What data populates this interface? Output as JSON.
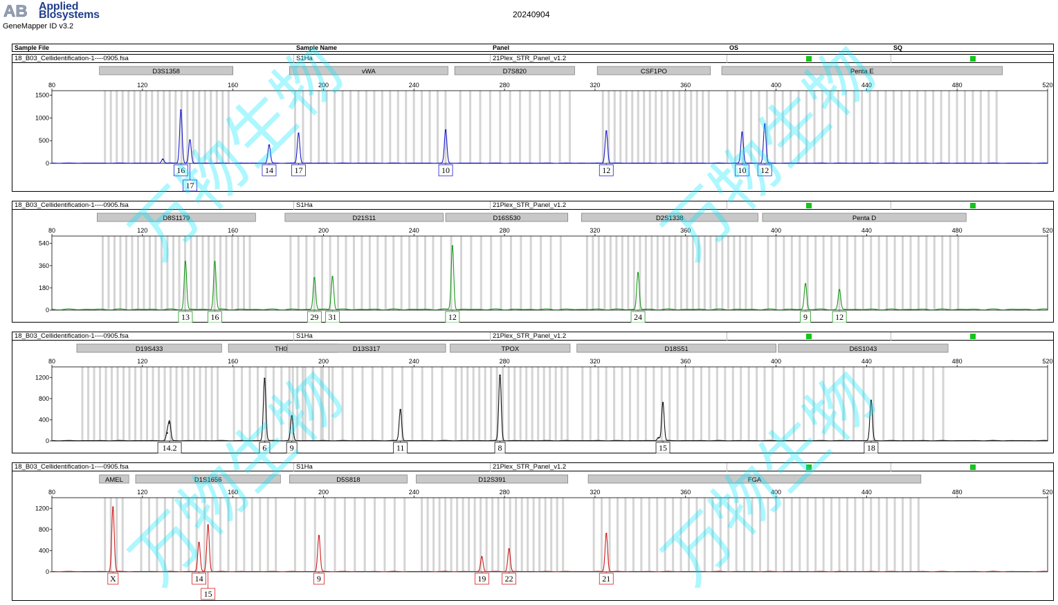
{
  "logo": {
    "mark": "AB",
    "line1": "Applied",
    "line2": "Biosystems"
  },
  "product": "GeneMapper ID v3.2",
  "report_date": "20240904",
  "watermark_text": "万物生物",
  "header": {
    "sample_file": "Sample File",
    "sample_name": "Sample Name",
    "panel": "Panel",
    "os": "OS",
    "sq": "SQ"
  },
  "colors": {
    "blue": "#1a1acb",
    "green": "#1a9a1a",
    "black": "#111111",
    "red": "#d01a1a",
    "bin": "#d4d4d4",
    "marker": "#c8c8c8",
    "flag": "#17c41c"
  },
  "chart_data": [
    {
      "type": "line",
      "dye": "blue",
      "sample_file": "18_B03_Cellidentification-1----0905.fsa",
      "sample_name": "S1Ha",
      "panel": "21Plex_STR_Panel_v1.2",
      "x_ticks": [
        80,
        120,
        160,
        200,
        240,
        280,
        320,
        360,
        400,
        440,
        480,
        520
      ],
      "y_ticks": [
        0,
        500,
        1000,
        1500
      ],
      "xlim": [
        80,
        520
      ],
      "ylim": [
        0,
        1600
      ],
      "markers": [
        {
          "name": "D3S1358",
          "start": 101,
          "end": 160
        },
        {
          "name": "vWA",
          "start": 185,
          "end": 255
        },
        {
          "name": "D7S820",
          "start": 258,
          "end": 311
        },
        {
          "name": "CSF1PO",
          "start": 321,
          "end": 371
        },
        {
          "name": "Penta E",
          "start": 376,
          "end": 500
        }
      ],
      "peaks": [
        {
          "x": 129,
          "y": 90
        },
        {
          "x": 137,
          "y": 1170
        },
        {
          "x": 141,
          "y": 510
        },
        {
          "x": 176,
          "y": 400
        },
        {
          "x": 189,
          "y": 660
        },
        {
          "x": 254,
          "y": 730
        },
        {
          "x": 325,
          "y": 710
        },
        {
          "x": 385,
          "y": 680
        },
        {
          "x": 395,
          "y": 860
        }
      ],
      "alleles": [
        {
          "label": "16",
          "x": 137,
          "row": 0
        },
        {
          "label": "17",
          "x": 141,
          "row": 1
        },
        {
          "label": "14",
          "x": 176,
          "row": 0
        },
        {
          "label": "17",
          "x": 189,
          "row": 0
        },
        {
          "label": "10",
          "x": 254,
          "row": 0
        },
        {
          "label": "12",
          "x": 325,
          "row": 0
        },
        {
          "label": "10",
          "x": 385,
          "row": 0
        },
        {
          "label": "12",
          "x": 395,
          "row": 0
        }
      ]
    },
    {
      "type": "line",
      "dye": "green",
      "sample_file": "18_B03_Cellidentification-1----0905.fsa",
      "sample_name": "S1Ha",
      "panel": "21Plex_STR_Panel_v1.2",
      "x_ticks": [
        80,
        120,
        160,
        200,
        240,
        280,
        320,
        360,
        400,
        440,
        480,
        520
      ],
      "y_ticks": [
        0,
        180,
        360,
        540
      ],
      "xlim": [
        80,
        520
      ],
      "ylim": [
        0,
        600
      ],
      "markers": [
        {
          "name": "D8S1179",
          "start": 100,
          "end": 170
        },
        {
          "name": "D21S11",
          "start": 183,
          "end": 253
        },
        {
          "name": "D16S530",
          "start": 254,
          "end": 308
        },
        {
          "name": "D2S1338",
          "start": 314,
          "end": 392
        },
        {
          "name": "Penta D",
          "start": 394,
          "end": 484
        }
      ],
      "peaks": [
        {
          "x": 139,
          "y": 390
        },
        {
          "x": 152,
          "y": 390
        },
        {
          "x": 196,
          "y": 260
        },
        {
          "x": 204,
          "y": 270
        },
        {
          "x": 257,
          "y": 520
        },
        {
          "x": 339,
          "y": 300
        },
        {
          "x": 413,
          "y": 210
        },
        {
          "x": 428,
          "y": 160
        }
      ],
      "alleles": [
        {
          "label": "13",
          "x": 139,
          "row": 0
        },
        {
          "label": "16",
          "x": 152,
          "row": 0
        },
        {
          "label": "29",
          "x": 196,
          "row": 0
        },
        {
          "label": "31",
          "x": 204,
          "row": 0
        },
        {
          "label": "12",
          "x": 257,
          "row": 0
        },
        {
          "label": "24",
          "x": 339,
          "row": 0
        },
        {
          "label": "9",
          "x": 413,
          "row": 0
        },
        {
          "label": "12",
          "x": 428,
          "row": 0
        }
      ]
    },
    {
      "type": "line",
      "dye": "black",
      "sample_file": "18_B03_Cellidentification-1----0905.fsa",
      "sample_name": "S1Ha",
      "panel": "21Plex_STR_Panel_v1.2",
      "x_ticks": [
        80,
        120,
        160,
        200,
        240,
        280,
        320,
        360,
        400,
        440,
        480,
        520
      ],
      "y_ticks": [
        0,
        400,
        800,
        1200
      ],
      "xlim": [
        80,
        520
      ],
      "ylim": [
        0,
        1400
      ],
      "markers": [
        {
          "name": "D19S433",
          "start": 91,
          "end": 155
        },
        {
          "name": "TH01",
          "start": 158,
          "end": 206
        },
        {
          "name": "D13S317",
          "start": 184,
          "end": 254
        },
        {
          "name": "TPOX",
          "start": 256,
          "end": 309
        },
        {
          "name": "D18S51",
          "start": 312,
          "end": 400
        },
        {
          "name": "D6S1043",
          "start": 401,
          "end": 476
        }
      ],
      "peaks": [
        {
          "x": 131,
          "y": 150
        },
        {
          "x": 132,
          "y": 340
        },
        {
          "x": 174,
          "y": 1180
        },
        {
          "x": 186,
          "y": 470
        },
        {
          "x": 234,
          "y": 590
        },
        {
          "x": 278,
          "y": 1240
        },
        {
          "x": 348,
          "y": 60
        },
        {
          "x": 350,
          "y": 720
        },
        {
          "x": 442,
          "y": 760
        }
      ],
      "alleles": [
        {
          "label": "14.2",
          "x": 132,
          "row": 0
        },
        {
          "label": "6",
          "x": 174,
          "row": 0
        },
        {
          "label": "9",
          "x": 186,
          "row": 0
        },
        {
          "label": "11",
          "x": 234,
          "row": 0
        },
        {
          "label": "8",
          "x": 278,
          "row": 0
        },
        {
          "label": "15",
          "x": 350,
          "row": 0
        },
        {
          "label": "18",
          "x": 442,
          "row": 0
        }
      ]
    },
    {
      "type": "line",
      "dye": "red",
      "sample_file": "18_B03_Cellidentification-1----0905.fsa",
      "sample_name": "S1Ha",
      "panel": "21Plex_STR_Panel_v1.2",
      "x_ticks": [
        80,
        120,
        160,
        200,
        240,
        280,
        320,
        360,
        400,
        440,
        480,
        520
      ],
      "y_ticks": [
        0,
        400,
        800,
        1200
      ],
      "xlim": [
        80,
        520
      ],
      "ylim": [
        0,
        1400
      ],
      "markers": [
        {
          "name": "AMEL",
          "start": 101,
          "end": 114
        },
        {
          "name": "D1S1656",
          "start": 117,
          "end": 181
        },
        {
          "name": "D5S818",
          "start": 185,
          "end": 237
        },
        {
          "name": "D12S391",
          "start": 241,
          "end": 308
        },
        {
          "name": "FGA",
          "start": 317,
          "end": 464
        }
      ],
      "peaks": [
        {
          "x": 107,
          "y": 1220
        },
        {
          "x": 145,
          "y": 550
        },
        {
          "x": 149,
          "y": 880
        },
        {
          "x": 198,
          "y": 680
        },
        {
          "x": 270,
          "y": 280
        },
        {
          "x": 282,
          "y": 430
        },
        {
          "x": 325,
          "y": 720
        }
      ],
      "alleles": [
        {
          "label": "X",
          "x": 107,
          "row": 0
        },
        {
          "label": "14",
          "x": 145,
          "row": 0
        },
        {
          "label": "15",
          "x": 149,
          "row": 1
        },
        {
          "label": "9",
          "x": 198,
          "row": 0
        },
        {
          "label": "19",
          "x": 270,
          "row": 0
        },
        {
          "label": "22",
          "x": 282,
          "row": 0
        },
        {
          "label": "21",
          "x": 325,
          "row": 0
        }
      ]
    }
  ]
}
